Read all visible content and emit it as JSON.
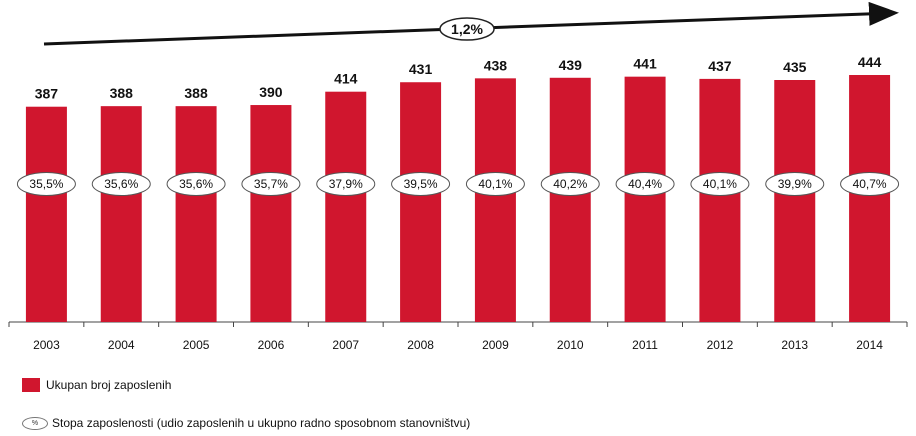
{
  "chart_data": {
    "type": "bar",
    "categories": [
      "2003",
      "2004",
      "2005",
      "2006",
      "2007",
      "2008",
      "2009",
      "2010",
      "2011",
      "2012",
      "2013",
      "2014"
    ],
    "series": [
      {
        "name": "Ukupan broj zaposlenih",
        "values": [
          387,
          388,
          388,
          390,
          414,
          431,
          438,
          439,
          441,
          437,
          435,
          444
        ],
        "labels": [
          "387",
          "388",
          "388",
          "390",
          "414",
          "431",
          "438",
          "439",
          "441",
          "437",
          "435",
          "444"
        ]
      },
      {
        "name": "Stopa zaposlenosti (udio zaposlenih u ukupno radno sposobnom stanovništvu)",
        "values": [
          35.5,
          35.6,
          35.6,
          35.7,
          37.9,
          39.5,
          40.1,
          40.2,
          40.4,
          40.1,
          39.9,
          40.7
        ],
        "labels": [
          "35,5%",
          "35,6%",
          "35,6%",
          "35,7%",
          "37,9%",
          "39,5%",
          "40,1%",
          "40,2%",
          "40,4%",
          "40,1%",
          "39,9%",
          "40,7%"
        ]
      }
    ],
    "ylim": [
      0,
      444
    ],
    "annotations": {
      "cagr": "1,2%"
    },
    "legend_placement": "bottom-left",
    "grid": false,
    "colors": {
      "bar": "#d0162e",
      "text": "#111111"
    }
  },
  "legend": {
    "bar_label": "Ukupan broj zaposlenih",
    "rate_label": "Stopa zaposlenosti (udio zaposlenih u ukupno radno sposobnom stanovništvu)",
    "rate_symbol": "%"
  }
}
